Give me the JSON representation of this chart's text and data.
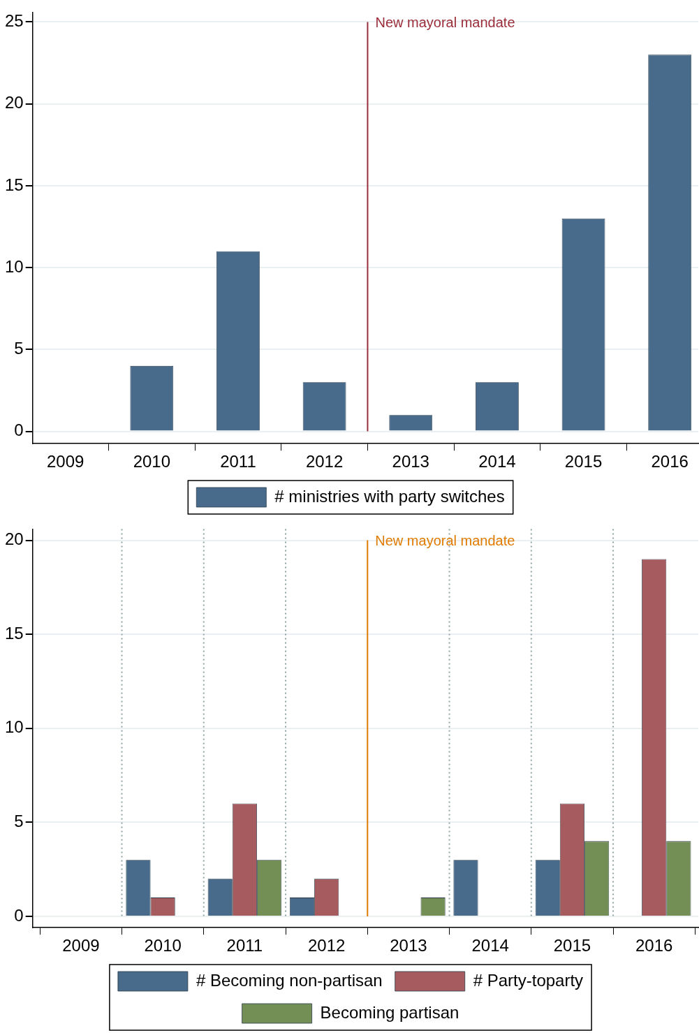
{
  "chart_data": [
    {
      "type": "bar",
      "x": [
        2009,
        2010,
        2011,
        2012,
        2013,
        2014,
        2015,
        2016
      ],
      "xlim": [
        2008.62,
        2016.33
      ],
      "xticks": [
        2009,
        2010,
        2011,
        2012,
        2013,
        2014,
        2015,
        2016
      ],
      "ylim": [
        -0.75,
        25.6
      ],
      "yticks": [
        0,
        5,
        10,
        15,
        20,
        25
      ],
      "grid": "y",
      "legend": "bottom",
      "series": [
        {
          "name": "# ministries with party switches",
          "color": "#486b8b",
          "values": [
            0,
            4,
            11,
            3,
            1,
            3,
            13,
            23
          ]
        }
      ],
      "ref_lines": [
        {
          "axis": "x",
          "value": 2012.5,
          "label": "New mayoral mandate",
          "color": "#9b2d3a",
          "line_style": "solid"
        }
      ]
    },
    {
      "type": "bar",
      "x": [
        2009,
        2010,
        2011,
        2012,
        2013,
        2014,
        2015,
        2016
      ],
      "xlim": [
        2008.41,
        2016.54
      ],
      "xticks": [
        2009,
        2010,
        2011,
        2012,
        2013,
        2014,
        2015,
        2016
      ],
      "ylim": [
        -0.6,
        20.6
      ],
      "yticks": [
        0,
        5,
        10,
        15,
        20
      ],
      "grid": "y",
      "legend": "bottom",
      "series": [
        {
          "name": "# Becoming non-partisan",
          "color": "#486b8b",
          "values": [
            0,
            3,
            2,
            1,
            0,
            3,
            3,
            0
          ]
        },
        {
          "name": "# Party-toparty",
          "color": "#a65c5f",
          "values": [
            0,
            1,
            6,
            2,
            0,
            0,
            6,
            19
          ]
        },
        {
          "name": "Becoming partisan",
          "color": "#748f56",
          "values": [
            0,
            0,
            3,
            0,
            1,
            0,
            4,
            4
          ]
        }
      ],
      "ref_lines": [
        {
          "axis": "x",
          "value": 2009.5,
          "color": "#8fa3a3",
          "line_style": "dotted"
        },
        {
          "axis": "x",
          "value": 2010.5,
          "color": "#8fa3a3",
          "line_style": "dotted"
        },
        {
          "axis": "x",
          "value": 2011.5,
          "color": "#8fa3a3",
          "line_style": "dotted"
        },
        {
          "axis": "x",
          "value": 2013.5,
          "color": "#8fa3a3",
          "line_style": "dotted"
        },
        {
          "axis": "x",
          "value": 2014.5,
          "color": "#8fa3a3",
          "line_style": "dotted"
        },
        {
          "axis": "x",
          "value": 2015.5,
          "color": "#8fa3a3",
          "line_style": "dotted"
        },
        {
          "axis": "x",
          "value": 2012.5,
          "label": "New mayoral mandate",
          "color": "#e07b00",
          "line_style": "solid"
        }
      ]
    }
  ]
}
